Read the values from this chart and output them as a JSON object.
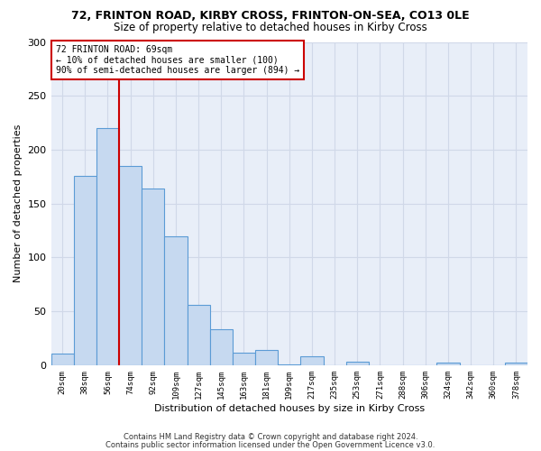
{
  "title1": "72, FRINTON ROAD, KIRBY CROSS, FRINTON-ON-SEA, CO13 0LE",
  "title2": "Size of property relative to detached houses in Kirby Cross",
  "xlabel": "Distribution of detached houses by size in Kirby Cross",
  "ylabel": "Number of detached properties",
  "categories": [
    "20sqm",
    "38sqm",
    "56sqm",
    "74sqm",
    "92sqm",
    "109sqm",
    "127sqm",
    "145sqm",
    "163sqm",
    "181sqm",
    "199sqm",
    "217sqm",
    "235sqm",
    "253sqm",
    "271sqm",
    "288sqm",
    "306sqm",
    "324sqm",
    "342sqm",
    "360sqm",
    "378sqm"
  ],
  "values": [
    11,
    176,
    220,
    185,
    164,
    120,
    56,
    33,
    12,
    14,
    1,
    8,
    0,
    3,
    0,
    0,
    0,
    2,
    0,
    0,
    2
  ],
  "bar_color": "#c6d9f0",
  "bar_edge_color": "#5b9bd5",
  "annotation_text": "72 FRINTON ROAD: 69sqm\n← 10% of detached houses are smaller (100)\n90% of semi-detached houses are larger (894) →",
  "annotation_box_color": "#ffffff",
  "annotation_box_edge": "#cc0000",
  "red_line_color": "#cc0000",
  "grid_color": "#d0d8e8",
  "bg_color": "#e8eef8",
  "footer1": "Contains HM Land Registry data © Crown copyright and database right 2024.",
  "footer2": "Contains public sector information licensed under the Open Government Licence v3.0.",
  "ylim": [
    0,
    300
  ],
  "yticks": [
    0,
    50,
    100,
    150,
    200,
    250,
    300
  ]
}
